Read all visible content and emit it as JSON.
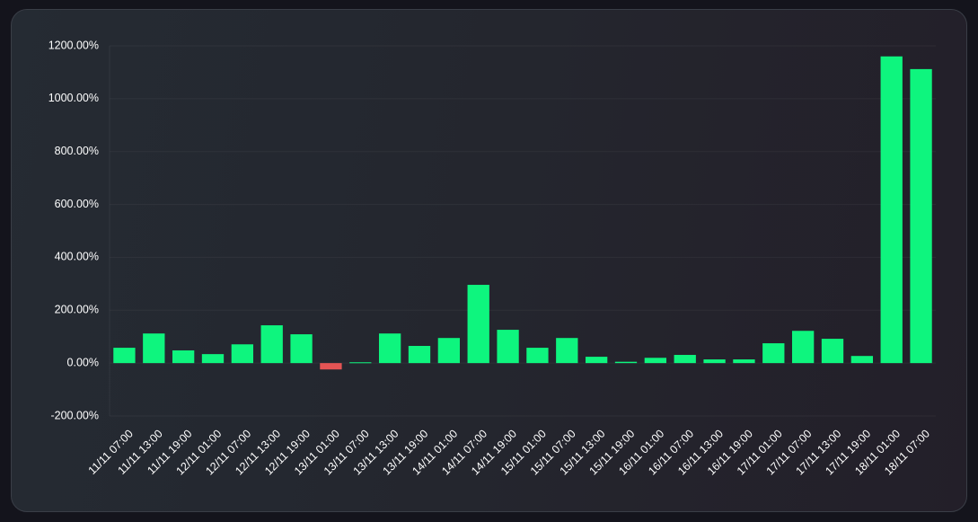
{
  "chart_data": {
    "type": "bar",
    "categories": [
      "11/11 07:00",
      "11/11 13:00",
      "11/11 19:00",
      "12/11 01:00",
      "12/11 07:00",
      "12/11 13:00",
      "12/11 19:00",
      "13/11 01:00",
      "13/11 07:00",
      "13/11 13:00",
      "13/11 19:00",
      "14/11 01:00",
      "14/11 07:00",
      "14/11 19:00",
      "15/11 01:00",
      "15/11 07:00",
      "15/11 13:00",
      "15/11 19:00",
      "16/11 01:00",
      "16/11 07:00",
      "16/11 13:00",
      "16/11 19:00",
      "17/11 01:00",
      "17/11 07:00",
      "17/11 13:00",
      "17/11 19:00",
      "18/11 01:00",
      "18/11 07:00"
    ],
    "values": [
      58,
      112,
      48,
      34,
      71,
      143,
      109,
      -24,
      3,
      112,
      65,
      95,
      296,
      126,
      58,
      95,
      24,
      5,
      20,
      31,
      14,
      14,
      75,
      122,
      92,
      27,
      1160,
      1112
    ],
    "color": "#0ef57e",
    "negative_color": "#e45454",
    "ylim": [
      -200,
      1200
    ],
    "yticks": [
      {
        "value": -200,
        "label": "-200.00%"
      },
      {
        "value": 0,
        "label": "0.00%"
      },
      {
        "value": 200,
        "label": "200.00%"
      },
      {
        "value": 400,
        "label": "400.00%"
      },
      {
        "value": 600,
        "label": "600.00%"
      },
      {
        "value": 800,
        "label": "800.00%"
      },
      {
        "value": 1000,
        "label": "1000.00%"
      },
      {
        "value": 1200,
        "label": "1200.00%"
      }
    ],
    "grid": true
  }
}
